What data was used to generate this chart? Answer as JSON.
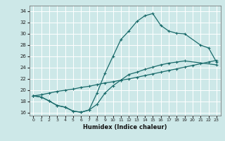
{
  "xlabel": "Humidex (Indice chaleur)",
  "bg_color": "#cde8e8",
  "grid_color": "#ffffff",
  "line_color": "#1a6b6b",
  "xlim": [
    -0.5,
    23.5
  ],
  "ylim": [
    15.5,
    35.0
  ],
  "xticks": [
    0,
    1,
    2,
    3,
    4,
    5,
    6,
    7,
    8,
    9,
    10,
    11,
    12,
    13,
    14,
    15,
    16,
    17,
    18,
    19,
    20,
    21,
    22,
    23
  ],
  "yticks": [
    16,
    18,
    20,
    22,
    24,
    26,
    28,
    30,
    32,
    34
  ],
  "line1_x": [
    0,
    1,
    2,
    3,
    4,
    5,
    6,
    7,
    8,
    9,
    10,
    11,
    12,
    13,
    14,
    15,
    16,
    17,
    18,
    19,
    21,
    22,
    23
  ],
  "line1_y": [
    19.0,
    18.8,
    18.1,
    17.3,
    17.0,
    16.3,
    16.1,
    16.5,
    19.5,
    23.0,
    26.0,
    29.0,
    30.5,
    32.2,
    33.2,
    33.6,
    31.5,
    30.5,
    30.1,
    30.0,
    28.0,
    27.5,
    25.0
  ],
  "line2_x": [
    0,
    1,
    2,
    3,
    4,
    5,
    6,
    7,
    8,
    9,
    10,
    11,
    12,
    13,
    14,
    15,
    16,
    17,
    18,
    19,
    20,
    21,
    22,
    23
  ],
  "line2_y": [
    19.0,
    19.2,
    19.5,
    19.8,
    20.0,
    20.2,
    20.5,
    20.7,
    21.0,
    21.3,
    21.5,
    21.8,
    22.0,
    22.3,
    22.6,
    22.9,
    23.2,
    23.5,
    23.8,
    24.1,
    24.4,
    24.7,
    25.0,
    25.3
  ],
  "line3_x": [
    0,
    1,
    2,
    3,
    4,
    5,
    6,
    7,
    8,
    9,
    10,
    11,
    12,
    13,
    14,
    15,
    16,
    17,
    18,
    19,
    23
  ],
  "line3_y": [
    19.0,
    18.8,
    18.1,
    17.3,
    17.0,
    16.3,
    16.1,
    16.5,
    17.5,
    19.5,
    20.8,
    21.8,
    22.8,
    23.2,
    23.7,
    24.1,
    24.5,
    24.8,
    25.0,
    25.2,
    24.5
  ]
}
